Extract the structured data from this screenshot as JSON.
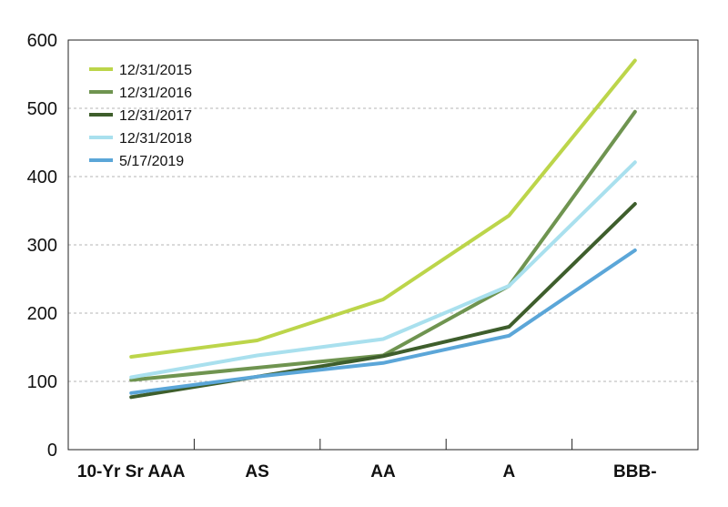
{
  "chart_data": {
    "type": "line",
    "title": "",
    "xlabel": "",
    "ylabel": "",
    "categories": [
      "10-Yr Sr AAA",
      "AS",
      "AA",
      "A",
      "BBB-"
    ],
    "ylim": [
      0,
      600
    ],
    "yticks": [
      0,
      100,
      200,
      300,
      400,
      500,
      600
    ],
    "grid": "horizontal-dashed",
    "legend_position": "top-left",
    "series": [
      {
        "name": "12/31/2015",
        "color": "#bcd54a",
        "values": [
          136,
          160,
          220,
          343,
          570
        ]
      },
      {
        "name": "12/31/2016",
        "color": "#6f9450",
        "values": [
          102,
          120,
          138,
          240,
          495
        ]
      },
      {
        "name": "12/31/2017",
        "color": "#3e5e2c",
        "values": [
          77,
          107,
          137,
          180,
          360
        ]
      },
      {
        "name": "12/31/2018",
        "color": "#a9e0ee",
        "values": [
          106,
          138,
          162,
          240,
          421
        ]
      },
      {
        "name": "5/17/2019",
        "color": "#5ba6d8",
        "values": [
          83,
          107,
          127,
          167,
          292
        ]
      }
    ]
  }
}
